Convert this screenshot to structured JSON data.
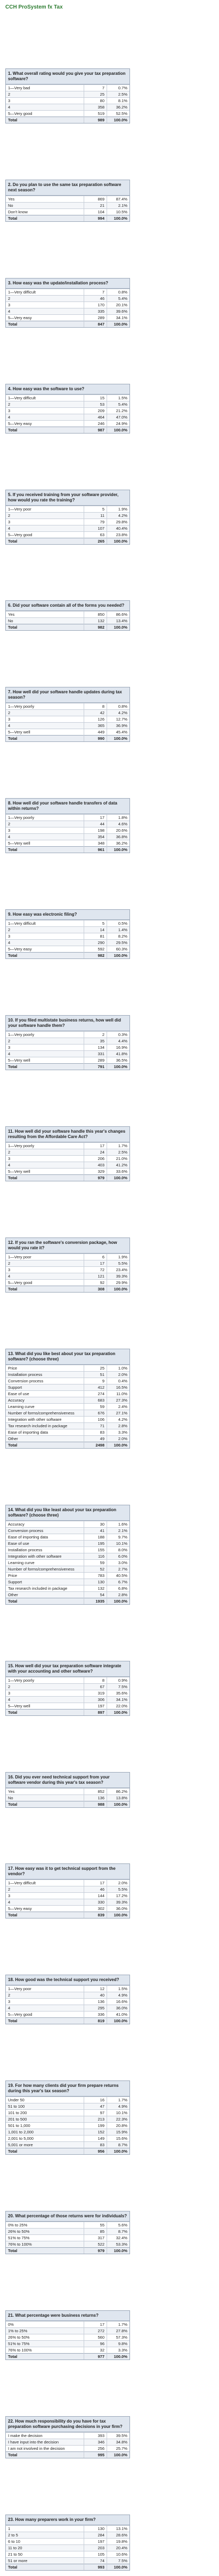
{
  "title": "CCH ProSystem fx Tax",
  "questions": [
    {
      "question": "1. What overall rating would you give your tax preparation software?",
      "rows": [
        [
          "1—Very bad",
          7,
          "0.7%"
        ],
        [
          "2",
          25,
          "2.5%"
        ],
        [
          "3",
          80,
          "8.1%"
        ],
        [
          "4",
          358,
          "36.2%"
        ],
        [
          "5—Very good",
          519,
          "52.5%"
        ]
      ],
      "total": [
        "Total",
        989,
        "100.0%"
      ]
    },
    {
      "question": "2. Do you plan to use the same tax preparation software next season?",
      "rows": [
        [
          "Yes",
          869,
          "87.4%"
        ],
        [
          "No",
          21,
          "2.1%"
        ],
        [
          "Don't know",
          104,
          "10.5%"
        ]
      ],
      "total": [
        "Total",
        994,
        "100.0%"
      ]
    },
    {
      "question": "3. How easy was the update/installation process?",
      "rows": [
        [
          "1—Very difficult",
          7,
          "0.8%"
        ],
        [
          "2",
          46,
          "5.4%"
        ],
        [
          "3",
          170,
          "20.1%"
        ],
        [
          "4",
          335,
          "39.6%"
        ],
        [
          "5—Very easy",
          289,
          "34.1%"
        ]
      ],
      "total": [
        "Total",
        847,
        "100.0%"
      ]
    },
    {
      "question": "4. How easy was the software to use?",
      "rows": [
        [
          "1—Very difficult",
          15,
          "1.5%"
        ],
        [
          "2",
          53,
          "5.4%"
        ],
        [
          "3",
          209,
          "21.2%"
        ],
        [
          "4",
          464,
          "47.0%"
        ],
        [
          "5—Very easy",
          246,
          "24.9%"
        ]
      ],
      "total": [
        "Total",
        987,
        "100.0%"
      ]
    },
    {
      "question": "5. If you received training from your software provider, how would you rate the training?",
      "rows": [
        [
          "1—Very poor",
          5,
          "1.9%"
        ],
        [
          "2",
          11,
          "4.2%"
        ],
        [
          "3",
          79,
          "29.8%"
        ],
        [
          "4",
          107,
          "40.4%"
        ],
        [
          "5—Very good",
          63,
          "23.8%"
        ]
      ],
      "total": [
        "Total",
        265,
        "100.0%"
      ]
    },
    {
      "question": "6. Did your software contain all of the forms you needed?",
      "rows": [
        [
          "Yes",
          850,
          "86.6%"
        ],
        [
          "No",
          132,
          "13.4%"
        ]
      ],
      "total": [
        "Total",
        982,
        "100.0%"
      ]
    },
    {
      "question": "7. How well did your software handle updates during tax season?",
      "rows": [
        [
          "1—Very poorly",
          8,
          "0.8%"
        ],
        [
          "2",
          42,
          "4.2%"
        ],
        [
          "3",
          126,
          "12.7%"
        ],
        [
          "4",
          365,
          "36.9%"
        ],
        [
          "5—Very well",
          449,
          "45.4%"
        ]
      ],
      "total": [
        "Total",
        990,
        "100.0%"
      ]
    },
    {
      "question": "8. How well did your software handle transfers of data within returns?",
      "rows": [
        [
          "1—Very poorly",
          17,
          "1.8%"
        ],
        [
          "2",
          44,
          "4.6%"
        ],
        [
          "3",
          198,
          "20.6%"
        ],
        [
          "4",
          354,
          "36.8%"
        ],
        [
          "5—Very well",
          348,
          "36.2%"
        ]
      ],
      "total": [
        "Total",
        961,
        "100.0%"
      ]
    },
    {
      "question": "9. How easy was electronic filing?",
      "rows": [
        [
          "1—Very difficult",
          5,
          "0.5%"
        ],
        [
          "2",
          14,
          "1.4%"
        ],
        [
          "3",
          81,
          "8.2%"
        ],
        [
          "4",
          290,
          "29.5%"
        ],
        [
          "5—Very easy",
          592,
          "60.3%"
        ]
      ],
      "total": [
        "Total",
        982,
        "100.0%"
      ]
    },
    {
      "question": "10. If you filed multistate business returns, how well did your software handle them?",
      "rows": [
        [
          "1—Very poorly",
          2,
          "0.3%"
        ],
        [
          "2",
          35,
          "4.4%"
        ],
        [
          "3",
          134,
          "16.9%"
        ],
        [
          "4",
          331,
          "41.8%"
        ],
        [
          "5—Very well",
          289,
          "36.5%"
        ]
      ],
      "total": [
        "Total",
        791,
        "100.0%"
      ]
    },
    {
      "question": "11. How well did your software handle this year's changes resulting from the Affordable Care Act?",
      "rows": [
        [
          "1—Very poorly",
          17,
          "1.7%"
        ],
        [
          "2",
          24,
          "2.5%"
        ],
        [
          "3",
          206,
          "21.0%"
        ],
        [
          "4",
          403,
          "41.2%"
        ],
        [
          "5—Very well",
          329,
          "33.6%"
        ]
      ],
      "total": [
        "Total",
        979,
        "100.0%"
      ]
    },
    {
      "question": "12. If you ran the software's conversion package, how would you rate it?",
      "rows": [
        [
          "1—Very poor",
          6,
          "1.9%"
        ],
        [
          "2",
          17,
          "5.5%"
        ],
        [
          "3",
          72,
          "23.4%"
        ],
        [
          "4",
          121,
          "39.3%"
        ],
        [
          "5—Very good",
          92,
          "29.9%"
        ]
      ],
      "total": [
        "Total",
        308,
        "100.0%"
      ]
    },
    {
      "question": "13. What did you like best about your tax preparation software? (choose three)",
      "rows": [
        [
          "Price",
          25,
          "1.0%"
        ],
        [
          "Installation process",
          51,
          "2.0%"
        ],
        [
          "Conversion process",
          9,
          "0.4%"
        ],
        [
          "Support",
          412,
          "16.5%"
        ],
        [
          "Ease of use",
          274,
          "11.0%"
        ],
        [
          "Accuracy",
          683,
          "27.3%"
        ],
        [
          "Learning curve",
          59,
          "2.4%"
        ],
        [
          "Number of forms/comprehensiveness",
          676,
          "27.1%"
        ],
        [
          "Integration with other software",
          106,
          "4.2%"
        ],
        [
          "Tax research included in package",
          71,
          "2.8%"
        ],
        [
          "Ease of importing data",
          83,
          "3.3%"
        ],
        [
          "Other",
          49,
          "2.0%"
        ]
      ],
      "total": [
        "Total",
        2498,
        "100.0%"
      ]
    },
    {
      "question": "14. What did you like least about your tax preparation software? (choose three)",
      "rows": [
        [
          "Accuracy",
          30,
          "1.6%"
        ],
        [
          "Conversion process",
          41,
          "2.1%"
        ],
        [
          "Ease of importing data",
          188,
          "9.7%"
        ],
        [
          "Ease of use",
          195,
          "10.1%"
        ],
        [
          "Installation process",
          155,
          "8.0%"
        ],
        [
          "Integration with other software",
          116,
          "6.0%"
        ],
        [
          "Learning curve",
          59,
          "3.0%"
        ],
        [
          "Number of forms/comprehensiveness",
          52,
          "2.7%"
        ],
        [
          "Price",
          783,
          "40.5%"
        ],
        [
          "Support",
          130,
          "6.7%"
        ],
        [
          "Tax research included in package",
          132,
          "6.8%"
        ],
        [
          "Other",
          54,
          "2.8%"
        ]
      ],
      "total": [
        "Total",
        1935,
        "100.0%"
      ]
    },
    {
      "question": "15. How well did your tax preparation software integrate with your accounting and other software?",
      "rows": [
        [
          "1—Very poorly",
          8,
          "0.9%"
        ],
        [
          "2",
          67,
          "7.5%"
        ],
        [
          "3",
          319,
          "35.6%"
        ],
        [
          "4",
          306,
          "34.1%"
        ],
        [
          "5—Very well",
          197,
          "22.0%"
        ]
      ],
      "total": [
        "Total",
        897,
        "100.0%"
      ]
    },
    {
      "question": "16. Did you ever need technical support from your software vendor during this year's tax season?",
      "rows": [
        [
          "Yes",
          852,
          "86.2%"
        ],
        [
          "No",
          136,
          "13.8%"
        ]
      ],
      "total": [
        "Total",
        988,
        "100.0%"
      ]
    },
    {
      "question": "17. How easy was it to get technical support from the vendor?",
      "rows": [
        [
          "1—Very difficult",
          17,
          "2.0%"
        ],
        [
          "2",
          46,
          "5.5%"
        ],
        [
          "3",
          144,
          "17.2%"
        ],
        [
          "4",
          330,
          "39.3%"
        ],
        [
          "5—Very easy",
          302,
          "36.0%"
        ]
      ],
      "total": [
        "Total",
        839,
        "100.0%"
      ]
    },
    {
      "question": "18. How good was the technical support you received?",
      "rows": [
        [
          "1—Very poor",
          12,
          "1.5%"
        ],
        [
          "2",
          40,
          "4.9%"
        ],
        [
          "3",
          136,
          "16.6%"
        ],
        [
          "4",
          295,
          "36.0%"
        ],
        [
          "5—Very good",
          336,
          "41.0%"
        ]
      ],
      "total": [
        "Total",
        819,
        "100.0%"
      ]
    },
    {
      "question": "19. For how many clients did your firm prepare returns during this year's tax season?",
      "rows": [
        [
          "Under 50",
          16,
          "1.7%"
        ],
        [
          "51 to 100",
          47,
          "4.9%"
        ],
        [
          "101 to 200",
          97,
          "10.1%"
        ],
        [
          "201 to 500",
          213,
          "22.3%"
        ],
        [
          "501 to 1,000",
          199,
          "20.8%"
        ],
        [
          "1,001 to 2,000",
          152,
          "15.9%"
        ],
        [
          "2,001 to 5,000",
          149,
          "15.6%"
        ],
        [
          "5,001 or more",
          83,
          "8.7%"
        ]
      ],
      "total": [
        "Total",
        956,
        "100.0%"
      ]
    },
    {
      "question": "20. What percentage of those returns were for individuals?",
      "rows": [
        [
          "0% to 25%",
          55,
          "5.6%"
        ],
        [
          "26% to 50%",
          85,
          "8.7%"
        ],
        [
          "51% to 75%",
          317,
          "32.4%"
        ],
        [
          "76% to 100%",
          522,
          "53.3%"
        ]
      ],
      "total": [
        "Total",
        979,
        "100.0%"
      ]
    },
    {
      "question": "21. What percentage were business returns?",
      "rows": [
        [
          "0%",
          17,
          "1.7%"
        ],
        [
          "1% to 25%",
          272,
          "27.8%"
        ],
        [
          "26% to 50%",
          560,
          "57.3%"
        ],
        [
          "51% to 75%",
          96,
          "9.8%"
        ],
        [
          "76% to 100%",
          32,
          "3.3%"
        ]
      ],
      "total": [
        "Total",
        977,
        "100.0%"
      ]
    },
    {
      "question": "22. How much responsibility do you have for tax preparation software purchasing decisions in your firm?",
      "rows": [
        [
          "I make the decision",
          393,
          "39.5%"
        ],
        [
          "I have input into the decision",
          346,
          "34.8%"
        ],
        [
          "I am not involved in the decision",
          256,
          "25.7%"
        ]
      ],
      "total": [
        "Total",
        995,
        "100.0%"
      ]
    },
    {
      "question": "23. How many preparers work in your firm?",
      "rows": [
        [
          "1",
          130,
          "13.1%"
        ],
        [
          "2 to 5",
          284,
          "28.6%"
        ],
        [
          "6 to 10",
          197,
          "19.8%"
        ],
        [
          "11 to 20",
          203,
          "20.4%"
        ],
        [
          "21 to 50",
          105,
          "10.6%"
        ],
        [
          "51 or more",
          74,
          "7.5%"
        ]
      ],
      "total": [
        "Total",
        993,
        "100.0%"
      ]
    }
  ]
}
